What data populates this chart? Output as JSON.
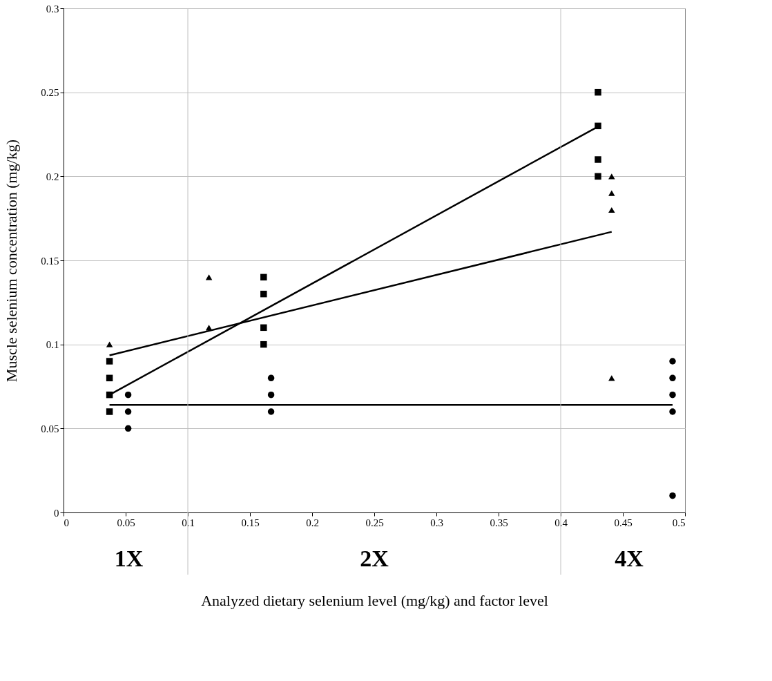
{
  "chart_data": {
    "type": "scatter",
    "xlabel": "Analyzed dietary selenium level (mg/kg) and factor level",
    "ylabel": "Muscle selenium concentration (mg/kg)",
    "annotations": [
      "1X",
      "2X",
      "4X"
    ],
    "xlim": [
      0,
      0.5
    ],
    "xticks": [
      0,
      0.05,
      0.1,
      0.15,
      0.2,
      0.25,
      0.3,
      0.35,
      0.4,
      0.45,
      0.5
    ],
    "ylim": [
      0,
      0.3
    ],
    "yticks": [
      0,
      0.05,
      0.1,
      0.15,
      0.2,
      0.25,
      0.3
    ],
    "grid": "y",
    "ref_lines": [
      {
        "axis": "x",
        "value": 0.1,
        "color": "#c0c0c0"
      },
      {
        "axis": "x",
        "value": 0.4,
        "color": "#c0c0c0"
      }
    ],
    "series": [
      {
        "type": "scatter",
        "marker": "square",
        "color": "#000000",
        "x": [
          0.037,
          0.037,
          0.037,
          0.037,
          0.161,
          0.161,
          0.161,
          0.161,
          0.43,
          0.43,
          0.43,
          0.43
        ],
        "values": [
          0.06,
          0.07,
          0.08,
          0.09,
          0.1,
          0.11,
          0.13,
          0.14,
          0.2,
          0.21,
          0.23,
          0.25
        ]
      },
      {
        "type": "scatter",
        "marker": "triangle",
        "color": "#000000",
        "x": [
          0.037,
          0.117,
          0.117,
          0.441,
          0.441,
          0.441,
          0.441
        ],
        "values": [
          0.1,
          0.11,
          0.14,
          0.08,
          0.18,
          0.19,
          0.2
        ]
      },
      {
        "type": "scatter",
        "marker": "circle",
        "color": "#000000",
        "x": [
          0.052,
          0.052,
          0.052,
          0.167,
          0.167,
          0.167,
          0.49,
          0.49,
          0.49,
          0.49,
          0.49
        ],
        "values": [
          0.05,
          0.06,
          0.07,
          0.06,
          0.07,
          0.08,
          0.01,
          0.06,
          0.07,
          0.08,
          0.09
        ]
      },
      {
        "type": "line",
        "marker": "none",
        "line_style": "solid",
        "color": "#000000",
        "x": [
          0.037,
          0.431
        ],
        "values": [
          0.07,
          0.23
        ]
      },
      {
        "type": "line",
        "marker": "none",
        "line_style": "solid",
        "color": "#000000",
        "x": [
          0.037,
          0.441
        ],
        "values": [
          0.0935,
          0.167
        ]
      },
      {
        "type": "line",
        "marker": "none",
        "line_style": "solid",
        "color": "#000000",
        "x": [
          0.037,
          0.49
        ],
        "values": [
          0.064,
          0.064
        ]
      }
    ]
  }
}
